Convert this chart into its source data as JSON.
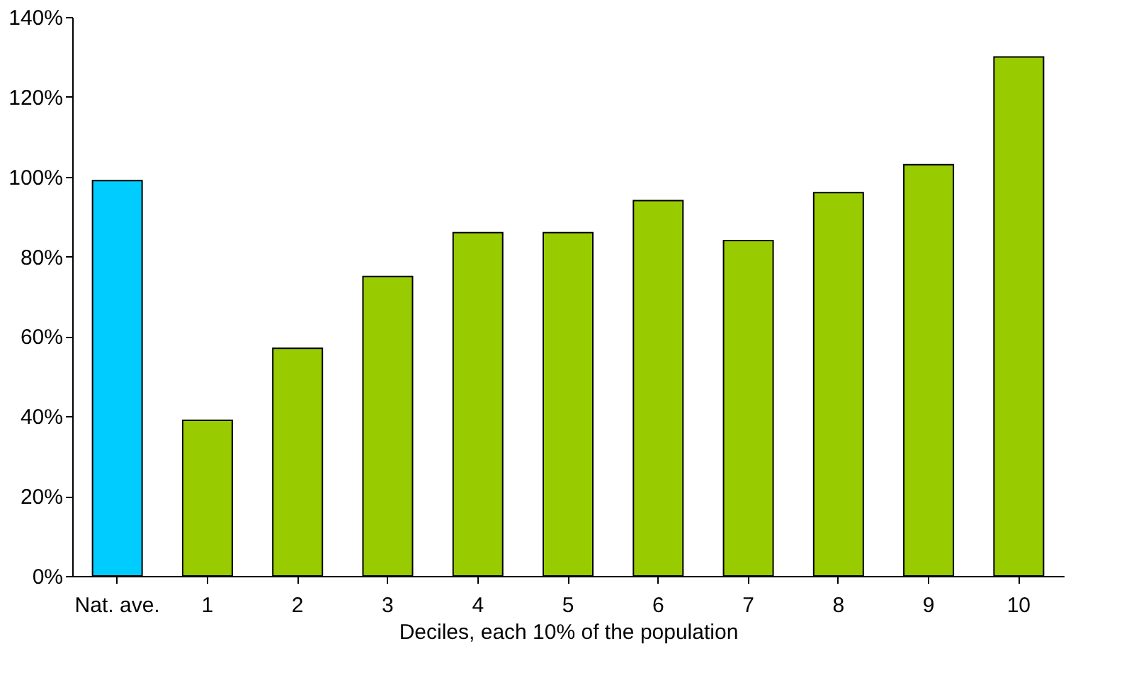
{
  "chart_data": {
    "type": "bar",
    "xlabel": "Deciles, each 10% of the population",
    "categories": [
      "Nat. ave.",
      "1",
      "2",
      "3",
      "4",
      "5",
      "6",
      "7",
      "8",
      "9",
      "10"
    ],
    "values": [
      99,
      39,
      57,
      75,
      86,
      86,
      94,
      84,
      96,
      103,
      130
    ],
    "colors": [
      "#00ccff",
      "#99cc00",
      "#99cc00",
      "#99cc00",
      "#99cc00",
      "#99cc00",
      "#99cc00",
      "#99cc00",
      "#99cc00",
      "#99cc00",
      "#99cc00"
    ],
    "ylim": [
      0,
      140
    ],
    "yticks": [
      {
        "value": 0,
        "label": "0%"
      },
      {
        "value": 20,
        "label": "20%"
      },
      {
        "value": 40,
        "label": "40%"
      },
      {
        "value": 60,
        "label": "60%"
      },
      {
        "value": 80,
        "label": "80%"
      },
      {
        "value": 100,
        "label": "100%"
      },
      {
        "value": 120,
        "label": "120%"
      },
      {
        "value": 140,
        "label": "140%"
      }
    ],
    "grid": false
  }
}
